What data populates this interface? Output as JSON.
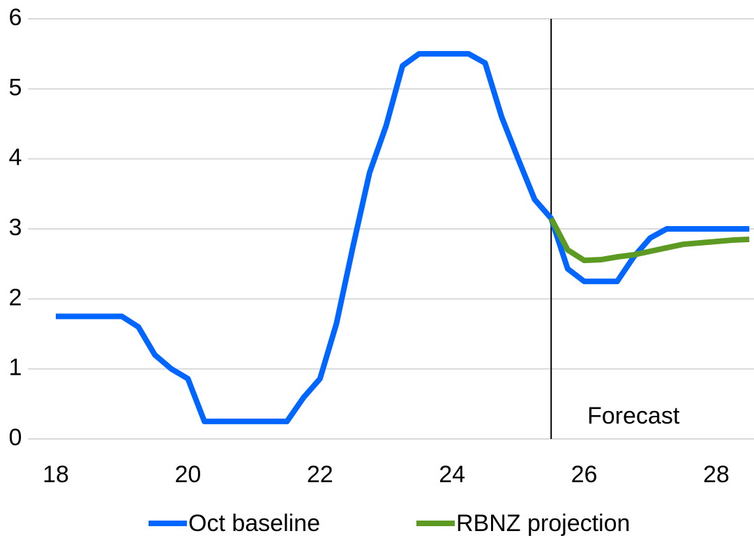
{
  "chart_data": {
    "type": "line",
    "x": [
      18,
      18.25,
      18.5,
      18.75,
      19,
      19.25,
      19.5,
      19.75,
      20,
      20.25,
      20.5,
      20.75,
      21,
      21.25,
      21.5,
      21.75,
      22,
      22.25,
      22.5,
      22.75,
      23,
      23.25,
      23.5,
      23.75,
      24,
      24.25,
      24.5,
      24.75,
      25,
      25.25,
      25.5,
      25.75,
      26,
      26.25,
      26.5,
      26.75,
      27,
      27.25,
      27.5,
      27.75,
      28,
      28.25,
      28.5
    ],
    "series": [
      {
        "name": "Oct baseline",
        "color": "#0066ff",
        "values": [
          1.75,
          1.75,
          1.75,
          1.75,
          1.75,
          1.6,
          1.2,
          1.0,
          0.86,
          0.25,
          0.25,
          0.25,
          0.25,
          0.25,
          0.25,
          0.59,
          0.86,
          1.65,
          2.75,
          3.8,
          4.47,
          5.33,
          5.5,
          5.5,
          5.5,
          5.5,
          5.37,
          4.6,
          4.0,
          3.42,
          3.15,
          2.43,
          2.25,
          2.25,
          2.25,
          2.6,
          2.87,
          3,
          3,
          3,
          3,
          3,
          3
        ]
      },
      {
        "name": "RBNZ projection",
        "color": "#5c9a23",
        "values": [
          null,
          null,
          null,
          null,
          null,
          null,
          null,
          null,
          null,
          null,
          null,
          null,
          null,
          null,
          null,
          null,
          null,
          null,
          null,
          null,
          null,
          null,
          null,
          null,
          null,
          null,
          null,
          null,
          null,
          null,
          3.15,
          2.7,
          2.55,
          2.56,
          2.6,
          2.63,
          2.68,
          2.73,
          2.78,
          2.8,
          2.82,
          2.84,
          2.85
        ]
      }
    ],
    "xlim": [
      18,
      28.55
    ],
    "xticks": [
      18,
      20,
      22,
      24,
      26,
      28
    ],
    "ylim": [
      0,
      6
    ],
    "yticks": [
      0,
      1,
      2,
      3,
      4,
      5,
      6
    ],
    "grid": true,
    "vline": 25.5,
    "annotation": "Forecast",
    "legend": "bottom"
  }
}
